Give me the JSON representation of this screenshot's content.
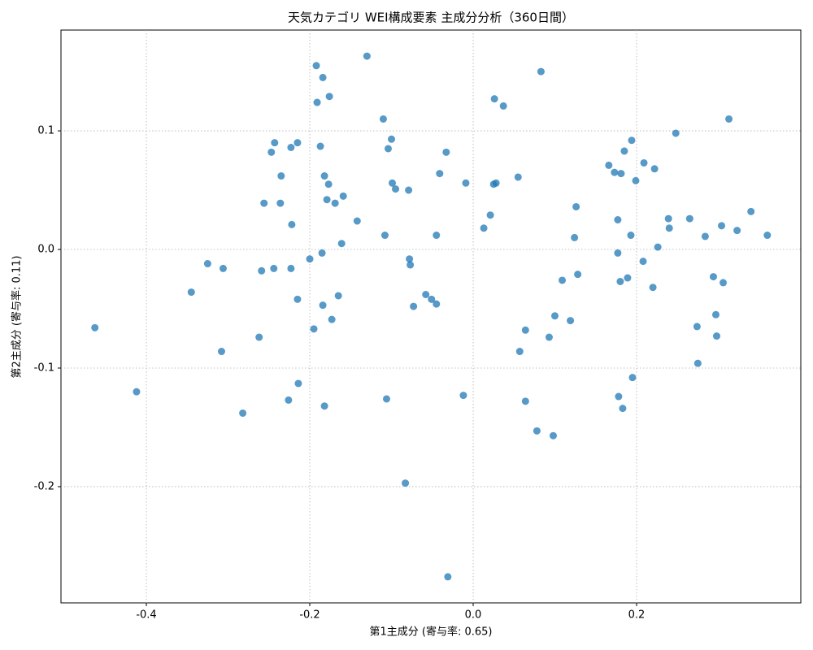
{
  "chart_data": {
    "type": "scatter",
    "title": "天気カテゴリ WEI構成要素 主成分分析（360日間）",
    "xlabel": "第1主成分 (寄与率: 0.65)",
    "ylabel": "第2主成分 (寄与率: 0.11)",
    "color": "#1f77b4",
    "grid": true,
    "xlim": [
      -0.5045,
      0.401
    ],
    "ylim": [
      -0.298,
      0.185
    ],
    "xticks": [
      -0.4,
      -0.2,
      {
        "value": 0,
        "label": "0.0"
      },
      0.2
    ],
    "yticks": [
      -0.2,
      -0.1,
      {
        "value": 0,
        "label": "0.0"
      },
      0.1
    ],
    "x": [
      -0.463,
      -0.412,
      -0.345,
      -0.325,
      -0.306,
      -0.308,
      -0.282,
      -0.262,
      -0.259,
      -0.256,
      -0.247,
      -0.243,
      -0.244,
      -0.236,
      -0.235,
      -0.226,
      -0.223,
      -0.222,
      -0.223,
      -0.215,
      -0.215,
      -0.214,
      -0.2,
      -0.195,
      -0.192,
      -0.191,
      -0.187,
      -0.185,
      -0.184,
      -0.184,
      -0.182,
      -0.182,
      -0.179,
      -0.177,
      -0.176,
      -0.173,
      -0.169,
      -0.165,
      -0.161,
      -0.159,
      -0.142,
      -0.13,
      -0.11,
      -0.108,
      -0.106,
      -0.104,
      -0.1,
      -0.099,
      -0.095,
      -0.083,
      -0.079,
      -0.078,
      -0.077,
      -0.073,
      -0.058,
      -0.051,
      -0.045,
      -0.045,
      -0.041,
      -0.033,
      -0.031,
      -0.012,
      -0.009,
      0.013,
      0.021,
      0.025,
      0.026,
      0.028,
      0.037,
      0.055,
      0.057,
      0.064,
      0.064,
      0.078,
      0.083,
      0.093,
      0.098,
      0.1,
      0.109,
      0.119,
      0.124,
      0.126,
      0.128,
      0.166,
      0.173,
      0.177,
      0.177,
      0.178,
      0.18,
      0.181,
      0.183,
      0.185,
      0.189,
      0.193,
      0.194,
      0.195,
      0.199,
      0.208,
      0.209,
      0.22,
      0.222,
      0.226,
      0.239,
      0.24,
      0.248,
      0.265,
      0.274,
      0.275,
      0.284,
      0.294,
      0.297,
      0.298,
      0.304,
      0.306,
      0.313,
      0.323,
      0.34,
      0.36
    ],
    "values": [
      -0.066,
      -0.12,
      -0.036,
      -0.012,
      -0.016,
      -0.086,
      -0.138,
      -0.074,
      -0.018,
      0.039,
      0.082,
      0.09,
      -0.016,
      0.039,
      0.062,
      -0.127,
      0.086,
      0.021,
      -0.016,
      0.09,
      -0.042,
      -0.113,
      -0.008,
      -0.067,
      0.155,
      0.124,
      0.087,
      -0.003,
      0.145,
      -0.047,
      0.062,
      -0.132,
      0.042,
      0.055,
      0.129,
      -0.059,
      0.039,
      -0.039,
      0.005,
      0.045,
      0.024,
      0.163,
      0.11,
      0.012,
      -0.126,
      0.085,
      0.093,
      0.056,
      0.051,
      -0.197,
      0.05,
      -0.008,
      -0.013,
      -0.048,
      -0.038,
      -0.042,
      0.012,
      -0.046,
      0.064,
      0.082,
      -0.276,
      -0.123,
      0.056,
      0.018,
      0.029,
      0.055,
      0.127,
      0.056,
      0.121,
      0.061,
      -0.086,
      -0.128,
      -0.068,
      -0.153,
      0.15,
      -0.074,
      -0.157,
      -0.056,
      -0.026,
      -0.06,
      0.01,
      0.036,
      -0.021,
      0.071,
      0.065,
      0.025,
      -0.003,
      -0.124,
      -0.027,
      0.064,
      -0.134,
      0.083,
      -0.024,
      0.012,
      0.092,
      -0.108,
      0.058,
      -0.01,
      0.073,
      -0.032,
      0.068,
      0.002,
      0.026,
      0.018,
      0.098,
      0.026,
      -0.065,
      -0.096,
      0.011,
      -0.023,
      -0.055,
      -0.073,
      0.02,
      -0.028,
      0.11,
      0.016,
      0.032,
      0.012
    ]
  }
}
